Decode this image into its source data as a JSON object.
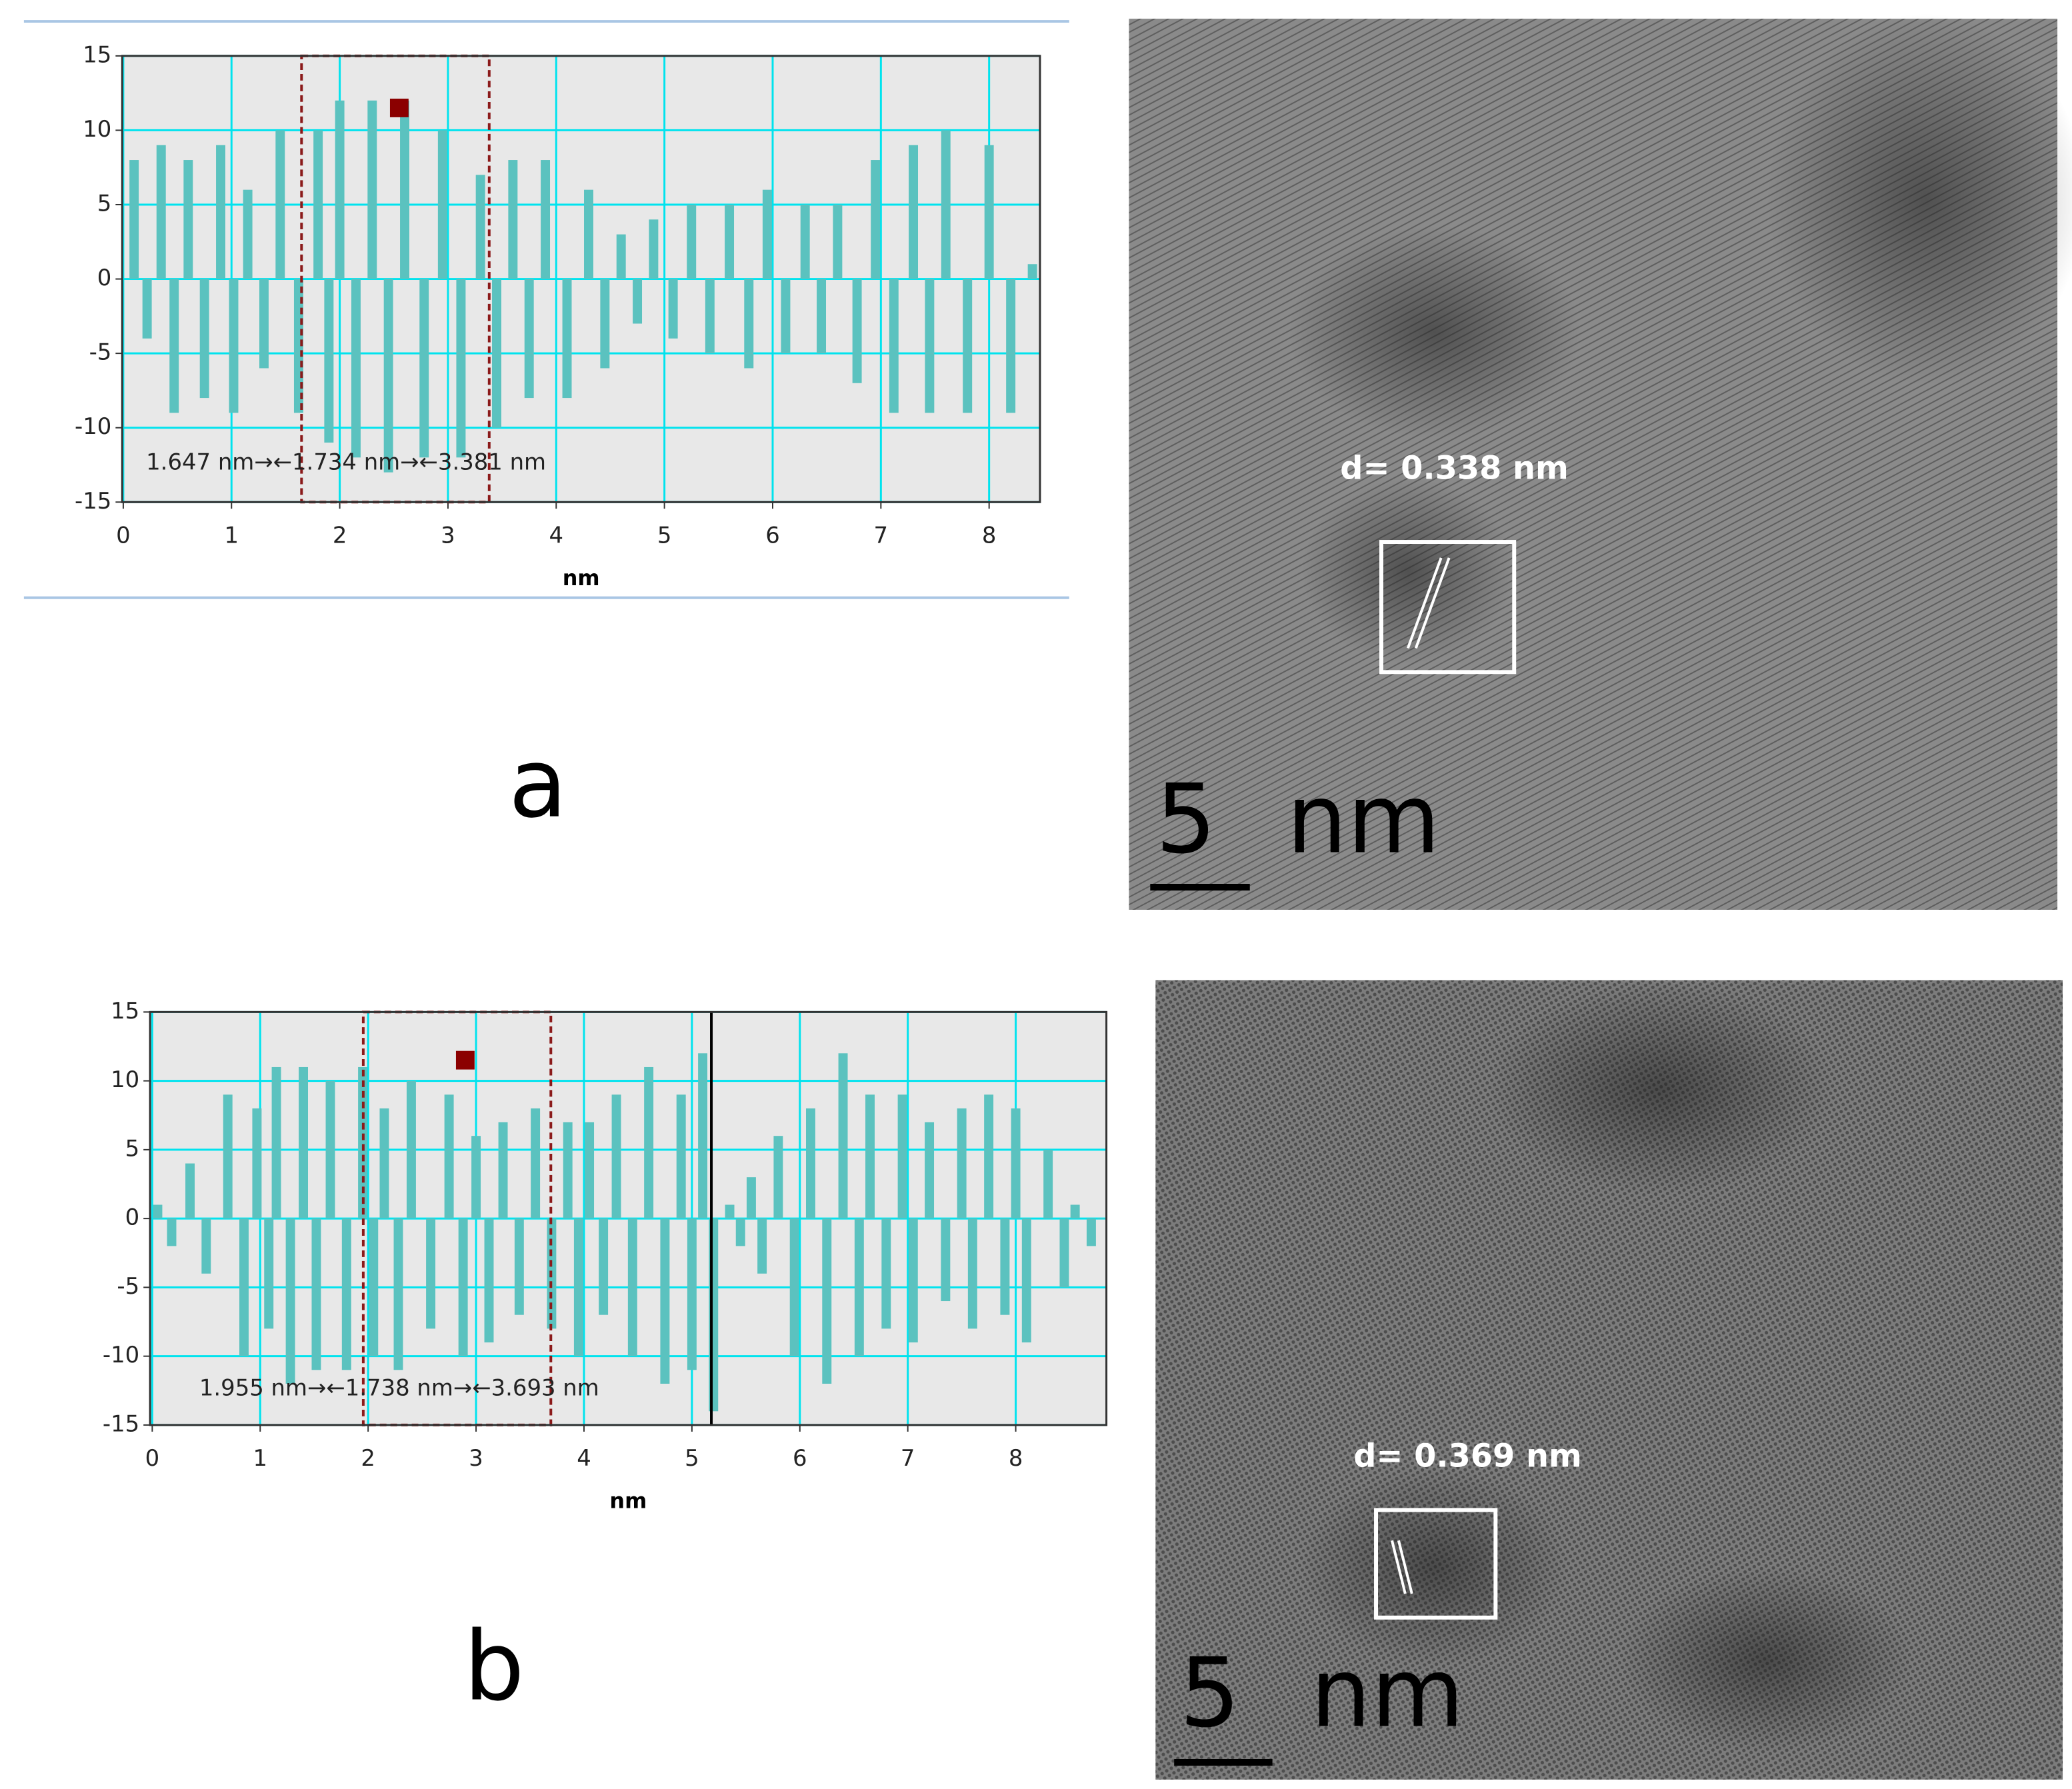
{
  "chart_data": [
    {
      "type": "bar",
      "color": "#5bc2bf",
      "grid": true,
      "grid_color": "#00e3ee",
      "background": "#e8e8e8",
      "xlabel": "nm",
      "annotation": "1.647 nm→←1.734 nm→←3.381 nm",
      "selection": [
        1.647,
        3.381
      ],
      "marker": [
        2.55,
        11.5
      ],
      "xlim": [
        -0.01,
        8.47
      ],
      "ylim": [
        -15,
        15
      ],
      "xticks": [
        0,
        1,
        2,
        3,
        4,
        5,
        6,
        7,
        8
      ],
      "yticks": [
        -15,
        -10,
        -5,
        0,
        5,
        10,
        15
      ],
      "x": [
        0.1,
        0.22,
        0.35,
        0.47,
        0.6,
        0.75,
        0.9,
        1.02,
        1.15,
        1.3,
        1.45,
        1.62,
        1.8,
        1.9,
        2.0,
        2.15,
        2.3,
        2.45,
        2.6,
        2.78,
        2.95,
        3.12,
        3.3,
        3.45,
        3.6,
        3.75,
        3.9,
        4.1,
        4.3,
        4.45,
        4.6,
        4.75,
        4.9,
        5.08,
        5.25,
        5.42,
        5.6,
        5.78,
        5.95,
        6.12,
        6.3,
        6.45,
        6.6,
        6.78,
        6.95,
        7.12,
        7.3,
        7.45,
        7.6,
        7.8,
        8.0,
        8.2,
        8.4
      ],
      "values": [
        8,
        -4,
        9,
        -9,
        8,
        -8,
        9,
        -9,
        6,
        -6,
        10,
        -9,
        10,
        -11,
        12,
        -12,
        12,
        -13,
        12,
        -12,
        10,
        -12,
        7,
        -10,
        8,
        -8,
        8,
        -8,
        6,
        -6,
        3,
        -3,
        4,
        -4,
        5,
        -5,
        5,
        -6,
        6,
        -5,
        5,
        -5,
        5,
        -7,
        8,
        -9,
        9,
        -9,
        10,
        -9,
        9,
        -9,
        1
      ]
    },
    {
      "type": "bar",
      "color": "#5bc2bf",
      "grid": true,
      "grid_color": "#00e3ee",
      "background": "#e8e8e8",
      "xlabel": "nm",
      "annotation": "1.955 nm→←1.738 nm→←3.693 nm",
      "selection": [
        1.955,
        3.693
      ],
      "marker": [
        2.9,
        11.5
      ],
      "cursor": 5.18,
      "xlim": [
        -0.02,
        8.84
      ],
      "ylim": [
        -15,
        15
      ],
      "xticks": [
        0,
        1,
        2,
        3,
        4,
        5,
        6,
        7,
        8
      ],
      "yticks": [
        -15,
        -10,
        -5,
        0,
        5,
        10,
        15
      ],
      "x": [
        0.05,
        0.18,
        0.35,
        0.5,
        0.7,
        0.85,
        0.97,
        1.08,
        1.15,
        1.28,
        1.4,
        1.52,
        1.65,
        1.8,
        1.95,
        2.05,
        2.15,
        2.28,
        2.4,
        2.58,
        2.75,
        2.88,
        3.0,
        3.12,
        3.25,
        3.4,
        3.55,
        3.7,
        3.85,
        3.95,
        4.05,
        4.18,
        4.3,
        4.45,
        4.6,
        4.75,
        4.9,
        5.0,
        5.1,
        5.2,
        5.35,
        5.45,
        5.55,
        5.65,
        5.8,
        5.95,
        6.1,
        6.25,
        6.4,
        6.55,
        6.65,
        6.8,
        6.95,
        7.05,
        7.2,
        7.35,
        7.5,
        7.6,
        7.75,
        7.9,
        8.0,
        8.1,
        8.3,
        8.45,
        8.55,
        8.7,
        8.8
      ],
      "values": [
        1,
        -2,
        4,
        -4,
        9,
        -10,
        8,
        -8,
        11,
        -12,
        11,
        -11,
        10,
        -11,
        11,
        -10,
        8,
        -11,
        10,
        -8,
        9,
        -10,
        6,
        -9,
        7,
        -7,
        8,
        -8,
        7,
        -10,
        7,
        -7,
        9,
        -10,
        11,
        -12,
        9,
        -11,
        12,
        -14,
        1,
        -2,
        3,
        -4,
        6,
        -10,
        8,
        -12,
        12,
        -10,
        9,
        -8,
        9,
        -9,
        7,
        -6,
        8,
        -8,
        9,
        -7,
        8,
        -9,
        5,
        -5,
        1,
        -2,
        0
      ]
    }
  ],
  "panel_labels": [
    "a",
    "b"
  ],
  "micrographs": [
    {
      "annotation": "d= 0.338 nm",
      "scale_bar": "5 nm"
    },
    {
      "annotation": "d= 0.369 nm",
      "scale_bar": "5 nm"
    }
  ]
}
